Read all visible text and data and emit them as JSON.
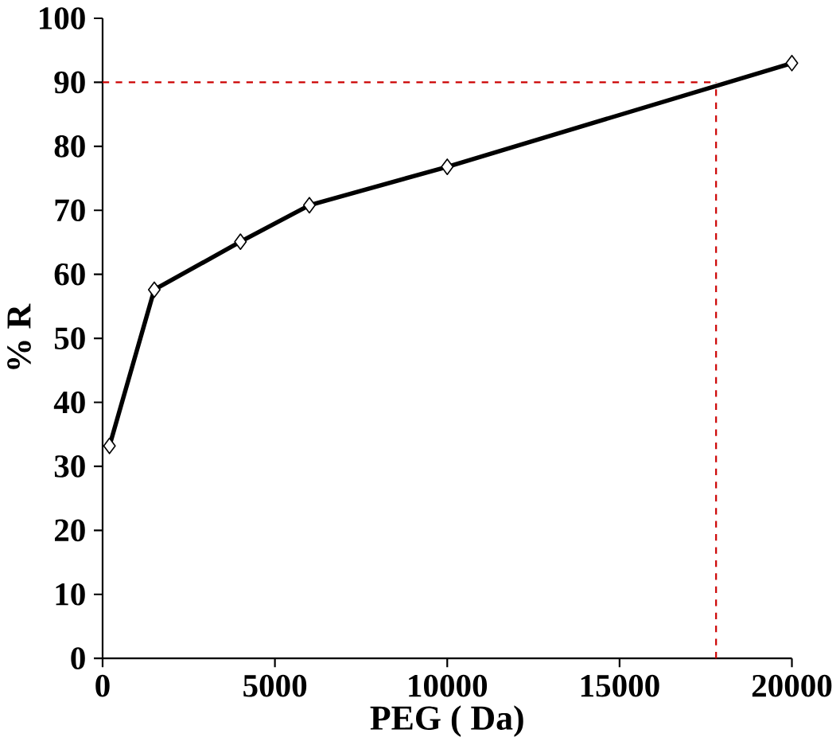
{
  "chart_data": {
    "type": "line",
    "xlabel": "PEG ( Da)",
    "ylabel": "% R",
    "x": [
      200,
      1500,
      4000,
      6000,
      10000,
      20000
    ],
    "series": [
      {
        "color": "#000000",
        "values": [
          33.2,
          57.6,
          65.1,
          70.8,
          76.8,
          93
        ]
      }
    ],
    "xlim": [
      0,
      20000
    ],
    "xticks": [
      0,
      5000,
      10000,
      15000,
      20000
    ],
    "ylim": [
      0,
      100
    ],
    "yticks": [
      0,
      10,
      20,
      30,
      40,
      50,
      60,
      70,
      80,
      90,
      100
    ],
    "marker": "diamond",
    "line_style": "solid",
    "ref_lines": [
      {
        "axis": "y",
        "value": 90,
        "color": "#cc0000",
        "line_style": "dashed"
      },
      {
        "axis": "x",
        "value": 17800,
        "color": "#cc0000",
        "line_style": "dashed"
      }
    ]
  }
}
